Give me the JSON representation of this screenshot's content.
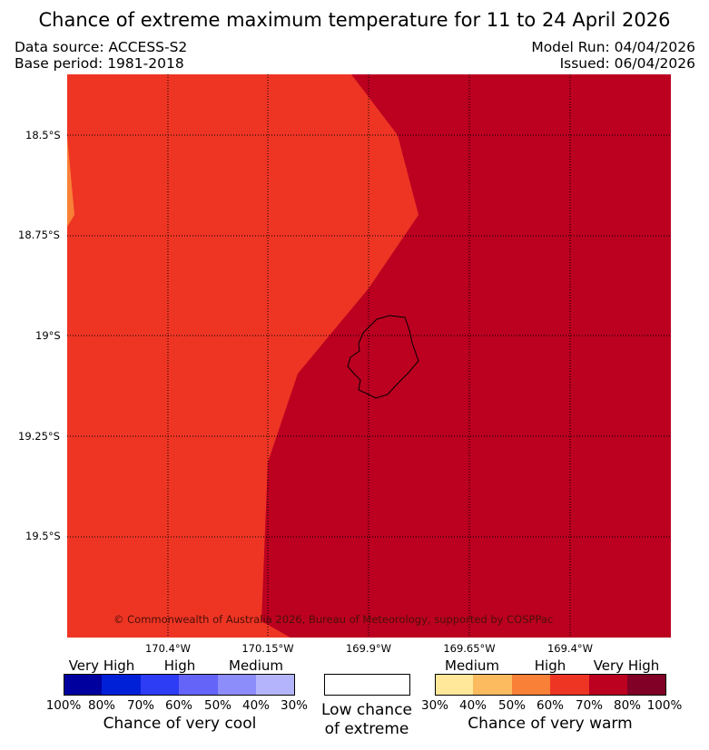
{
  "title": "Chance of extreme maximum temperature for 11 to 24 April 2026",
  "data_source": "Data source: ACCESS-S2",
  "base_period": "Base period: 1981-2018",
  "model_run": "Model Run: 04/04/2026",
  "issued": "Issued: 06/04/2026",
  "copyright": "© Commonwealth of Australia 2026, Bureau of Meteorology, supported by COSPPac",
  "latitude_labels": [
    "18.5°S",
    "18.75°S",
    "19°S",
    "19.25°S",
    "19.5°S"
  ],
  "longitude_labels": [
    "170.4°W",
    "170.15°W",
    "169.9°W",
    "169.65°W",
    "169.4°W"
  ],
  "colors": {
    "very_warm_70_80": "#bb0020",
    "warm_60_70": "#ee3524",
    "warm_50_60": "#f98037",
    "island_outline": "#000000",
    "gridline": "#000000"
  },
  "legend": {
    "cool": {
      "caption": "Chance of very cool",
      "levels": [
        "Very High",
        "High",
        "Medium"
      ],
      "ticks": [
        "100%",
        "80%",
        "70%",
        "60%",
        "50%",
        "40%",
        "30%"
      ],
      "swatch_colors": [
        "#00009e",
        "#0020d8",
        "#2d3cf5",
        "#6464f8",
        "#8c8cfa",
        "#b4b4fc"
      ]
    },
    "neutral": {
      "caption_line1": "Low chance",
      "caption_line2": "of extreme",
      "swatch_color": "#ffffff"
    },
    "warm": {
      "caption": "Chance of very warm",
      "levels": [
        "Medium",
        "High",
        "Very High"
      ],
      "ticks": [
        "30%",
        "40%",
        "50%",
        "60%",
        "70%",
        "80%",
        "100%"
      ],
      "swatch_colors": [
        "#ffe89a",
        "#fdbb5f",
        "#f98037",
        "#ee3524",
        "#bb0020",
        "#800026"
      ]
    }
  }
}
